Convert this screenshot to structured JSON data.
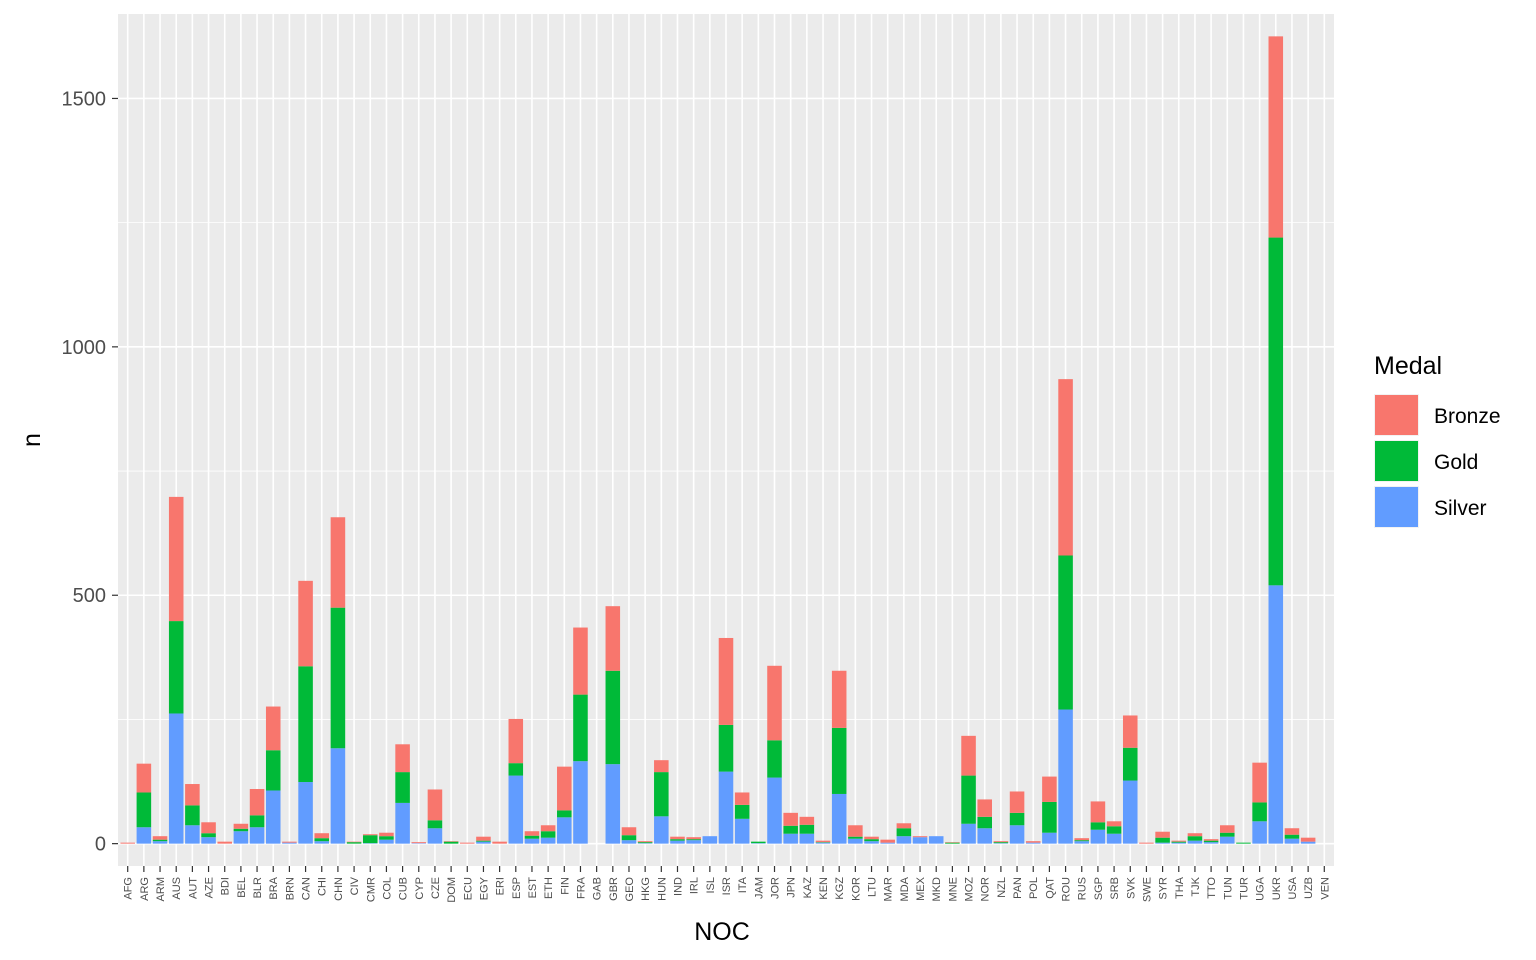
{
  "chart_data": {
    "type": "bar",
    "stacked": true,
    "xlabel": "NOC",
    "ylabel": "n",
    "ylim": [
      -45,
      1670
    ],
    "yticks": [
      0,
      500,
      1000,
      1500
    ],
    "grid": true,
    "legend": {
      "title": "Medal",
      "placement": "right"
    },
    "categories": [
      "AFG",
      "ARG",
      "ARM",
      "AUS",
      "AUT",
      "AZE",
      "BDI",
      "BEL",
      "BLR",
      "BRA",
      "BRN",
      "CAN",
      "CHI",
      "CHN",
      "CIV",
      "CMR",
      "COL",
      "CUB",
      "CYP",
      "CZE",
      "DOM",
      "ECU",
      "EGY",
      "ERI",
      "ESP",
      "EST",
      "ETH",
      "FIN",
      "FRA",
      "GAB",
      "GBR",
      "GEO",
      "HKG",
      "HUN",
      "IND",
      "IRL",
      "ISL",
      "ISR",
      "ITA",
      "JAM",
      "JOR",
      "JPN",
      "KAZ",
      "KEN",
      "KGZ",
      "KOR",
      "LTU",
      "MAR",
      "MDA",
      "MEX",
      "MKD",
      "MNE",
      "MOZ",
      "NOR",
      "NZL",
      "PAN",
      "POL",
      "QAT",
      "ROU",
      "RUS",
      "SGP",
      "SRB",
      "SVK",
      "SWE",
      "SYR",
      "THA",
      "TJK",
      "TTO",
      "TUN",
      "TUR",
      "UGA",
      "UKR",
      "USA",
      "UZB",
      "VEN"
    ],
    "series": [
      {
        "name": "Silver",
        "color": "#619CFF",
        "values": [
          0,
          33,
          5,
          262,
          37,
          13,
          0,
          25,
          33,
          107,
          2,
          124,
          5,
          192,
          0,
          1,
          8,
          82,
          1,
          31,
          0,
          0,
          4,
          0,
          137,
          10,
          12,
          53,
          166,
          0,
          160,
          7,
          1,
          55,
          6,
          7,
          15,
          145,
          50,
          1,
          133,
          20,
          20,
          2,
          100,
          10,
          5,
          2,
          15,
          13,
          15,
          0,
          40,
          31,
          1,
          37,
          2,
          22,
          270,
          5,
          28,
          20,
          127,
          0,
          2,
          2,
          6,
          3,
          14,
          0,
          45,
          520,
          10,
          4,
          0
        ]
      },
      {
        "name": "Gold",
        "color": "#00BA38",
        "values": [
          0,
          70,
          3,
          186,
          40,
          8,
          0,
          5,
          24,
          81,
          0,
          233,
          6,
          283,
          3,
          16,
          7,
          62,
          0,
          16,
          4,
          0,
          2,
          0,
          25,
          6,
          13,
          14,
          134,
          0,
          188,
          10,
          2,
          89,
          3,
          2,
          0,
          94,
          28,
          3,
          75,
          16,
          18,
          1,
          133,
          4,
          4,
          0,
          16,
          0,
          0,
          2,
          97,
          23,
          2,
          25,
          0,
          62,
          310,
          2,
          15,
          15,
          66,
          0,
          10,
          2,
          9,
          3,
          8,
          2,
          38,
          700,
          8,
          0,
          0
        ]
      },
      {
        "name": "Bronze",
        "color": "#F8766D",
        "values": [
          2,
          58,
          7,
          250,
          43,
          22,
          4,
          10,
          53,
          88,
          2,
          172,
          10,
          182,
          1,
          2,
          7,
          56,
          2,
          62,
          1,
          2,
          8,
          4,
          89,
          9,
          12,
          88,
          135,
          0,
          130,
          16,
          2,
          24,
          5,
          4,
          0,
          175,
          25,
          0,
          150,
          26,
          16,
          3,
          115,
          23,
          5,
          6,
          10,
          2,
          0,
          1,
          80,
          35,
          2,
          43,
          3,
          51,
          355,
          4,
          42,
          10,
          65,
          2,
          12,
          2,
          6,
          3,
          15,
          0,
          80,
          405,
          13,
          8,
          0
        ]
      }
    ]
  }
}
